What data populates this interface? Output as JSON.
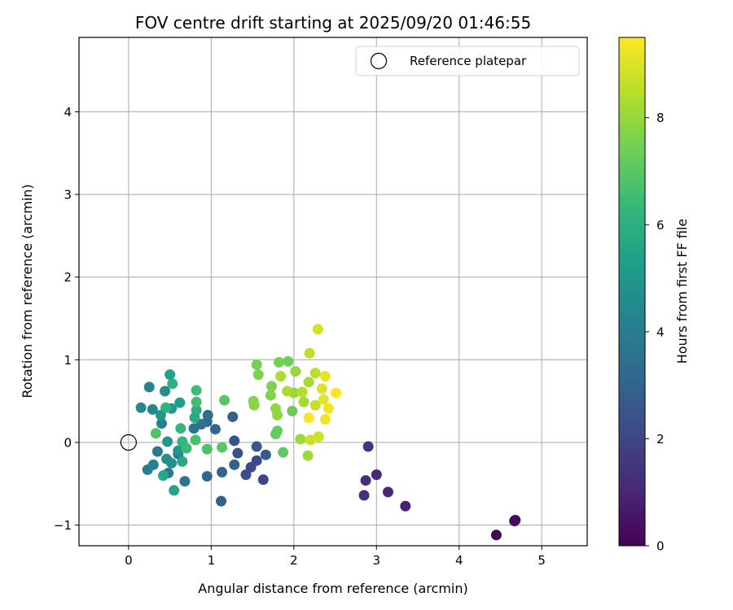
{
  "chart_data": {
    "type": "scatter",
    "title": "FOV centre drift starting at 2025/09/20 01:46:55",
    "xlabel": "Angular distance from reference (arcmin)",
    "ylabel": "Rotation from reference (arcmin)",
    "xlim": [
      -0.6,
      5.55
    ],
    "ylim": [
      -1.25,
      4.9
    ],
    "xticks": [
      0,
      1,
      2,
      3,
      4,
      5
    ],
    "yticks": [
      -1,
      0,
      1,
      2,
      3,
      4
    ],
    "xtick_labels": [
      "0",
      "1",
      "2",
      "3",
      "4",
      "5"
    ],
    "ytick_labels": [
      "−1",
      "0",
      "1",
      "2",
      "3",
      "4"
    ],
    "grid": true,
    "legend": {
      "position": "top-right",
      "label": "Reference platepar"
    },
    "reference_point": {
      "x": 0,
      "y": 0
    },
    "colorbar": {
      "label": "Hours from first FF file",
      "range": [
        0,
        9.5
      ],
      "ticks": [
        0,
        2,
        4,
        6,
        8
      ],
      "tick_labels": [
        "0",
        "2",
        "4",
        "6",
        "8"
      ],
      "colormap": "viridis",
      "stops": [
        "#440154",
        "#482878",
        "#3e4989",
        "#31688e",
        "#26828e",
        "#1f9e89",
        "#35b779",
        "#6ece58",
        "#b5de2b",
        "#fde725"
      ]
    },
    "series": [
      {
        "name": "FOV centre",
        "points": [
          {
            "x": 4.45,
            "y": -1.12,
            "t": 0.05
          },
          {
            "x": 4.68,
            "y": -0.94,
            "t": 0.15
          },
          {
            "x": 4.67,
            "y": -0.95,
            "t": 0.25
          },
          {
            "x": 3.35,
            "y": -0.77,
            "t": 0.9
          },
          {
            "x": 3.14,
            "y": -0.6,
            "t": 1.0
          },
          {
            "x": 3.0,
            "y": -0.39,
            "t": 1.1
          },
          {
            "x": 2.87,
            "y": -0.46,
            "t": 1.2
          },
          {
            "x": 2.85,
            "y": -0.64,
            "t": 1.3
          },
          {
            "x": 2.9,
            "y": -0.05,
            "t": 1.4
          },
          {
            "x": 1.63,
            "y": -0.45,
            "t": 2.0
          },
          {
            "x": 1.55,
            "y": -0.22,
            "t": 2.1
          },
          {
            "x": 1.48,
            "y": -0.3,
            "t": 2.2
          },
          {
            "x": 1.42,
            "y": -0.39,
            "t": 2.3
          },
          {
            "x": 1.32,
            "y": -0.13,
            "t": 2.4
          },
          {
            "x": 1.28,
            "y": 0.02,
            "t": 2.5
          },
          {
            "x": 1.55,
            "y": -0.05,
            "t": 2.6
          },
          {
            "x": 1.66,
            "y": -0.15,
            "t": 2.7
          },
          {
            "x": 1.26,
            "y": 0.31,
            "t": 2.8
          },
          {
            "x": 1.12,
            "y": -0.71,
            "t": 2.9
          },
          {
            "x": 1.13,
            "y": -0.36,
            "t": 3.0
          },
          {
            "x": 1.28,
            "y": -0.27,
            "t": 3.0
          },
          {
            "x": 1.05,
            "y": 0.16,
            "t": 3.1
          },
          {
            "x": 0.95,
            "y": -0.41,
            "t": 3.2
          },
          {
            "x": 0.95,
            "y": 0.25,
            "t": 3.3
          },
          {
            "x": 0.96,
            "y": 0.33,
            "t": 3.4
          },
          {
            "x": 0.88,
            "y": 0.22,
            "t": 3.5
          },
          {
            "x": 0.79,
            "y": 0.17,
            "t": 3.6
          },
          {
            "x": 0.68,
            "y": -0.47,
            "t": 3.6
          },
          {
            "x": 0.6,
            "y": -0.14,
            "t": 3.7
          },
          {
            "x": 0.48,
            "y": -0.37,
            "t": 3.8
          },
          {
            "x": 0.35,
            "y": -0.11,
            "t": 3.9
          },
          {
            "x": 0.3,
            "y": -0.27,
            "t": 4.0
          },
          {
            "x": 0.23,
            "y": -0.33,
            "t": 4.1
          },
          {
            "x": 0.4,
            "y": 0.23,
            "t": 4.2
          },
          {
            "x": 0.25,
            "y": 0.67,
            "t": 4.3
          },
          {
            "x": 0.29,
            "y": 0.4,
            "t": 4.4
          },
          {
            "x": 0.15,
            "y": 0.42,
            "t": 4.5
          },
          {
            "x": 0.44,
            "y": 0.62,
            "t": 4.6
          },
          {
            "x": 0.46,
            "y": -0.2,
            "t": 4.7
          },
          {
            "x": 0.52,
            "y": -0.25,
            "t": 4.8
          },
          {
            "x": 0.6,
            "y": -0.1,
            "t": 4.9
          },
          {
            "x": 0.47,
            "y": 0.01,
            "t": 5.0
          },
          {
            "x": 0.39,
            "y": 0.33,
            "t": 5.1
          },
          {
            "x": 0.52,
            "y": 0.41,
            "t": 5.2
          },
          {
            "x": 0.62,
            "y": 0.48,
            "t": 5.3
          },
          {
            "x": 0.5,
            "y": 0.82,
            "t": 5.4
          },
          {
            "x": 0.55,
            "y": -0.58,
            "t": 5.5
          },
          {
            "x": 0.42,
            "y": -0.4,
            "t": 5.6
          },
          {
            "x": 0.65,
            "y": -0.23,
            "t": 5.7
          },
          {
            "x": 0.8,
            "y": 0.3,
            "t": 5.8
          },
          {
            "x": 0.82,
            "y": 0.39,
            "t": 5.9
          },
          {
            "x": 0.53,
            "y": 0.71,
            "t": 6.0
          },
          {
            "x": 0.45,
            "y": 0.42,
            "t": 6.1
          },
          {
            "x": 0.63,
            "y": 0.17,
            "t": 6.2
          },
          {
            "x": 0.65,
            "y": 0.01,
            "t": 6.3
          },
          {
            "x": 0.7,
            "y": -0.07,
            "t": 6.4
          },
          {
            "x": 0.82,
            "y": 0.63,
            "t": 6.5
          },
          {
            "x": 0.82,
            "y": 0.49,
            "t": 6.6
          },
          {
            "x": 0.81,
            "y": 0.03,
            "t": 6.7
          },
          {
            "x": 0.95,
            "y": -0.08,
            "t": 6.8
          },
          {
            "x": 0.33,
            "y": 0.11,
            "t": 6.9
          },
          {
            "x": 1.13,
            "y": -0.06,
            "t": 7.0
          },
          {
            "x": 1.16,
            "y": 0.51,
            "t": 7.0
          },
          {
            "x": 1.87,
            "y": -0.12,
            "t": 7.1
          },
          {
            "x": 1.78,
            "y": 0.1,
            "t": 7.2
          },
          {
            "x": 1.8,
            "y": 0.14,
            "t": 7.2
          },
          {
            "x": 1.98,
            "y": 0.38,
            "t": 7.3
          },
          {
            "x": 1.93,
            "y": 0.98,
            "t": 7.4
          },
          {
            "x": 1.82,
            "y": 0.97,
            "t": 7.5
          },
          {
            "x": 1.55,
            "y": 0.94,
            "t": 7.5
          },
          {
            "x": 1.57,
            "y": 0.82,
            "t": 7.6
          },
          {
            "x": 1.73,
            "y": 0.68,
            "t": 7.6
          },
          {
            "x": 1.72,
            "y": 0.57,
            "t": 7.7
          },
          {
            "x": 1.52,
            "y": 0.45,
            "t": 7.8
          },
          {
            "x": 1.51,
            "y": 0.5,
            "t": 7.8
          },
          {
            "x": 1.78,
            "y": 0.41,
            "t": 7.9
          },
          {
            "x": 1.8,
            "y": 0.33,
            "t": 7.9
          },
          {
            "x": 2.0,
            "y": 0.6,
            "t": 8.0
          },
          {
            "x": 2.02,
            "y": 0.86,
            "t": 8.0
          },
          {
            "x": 2.08,
            "y": 0.04,
            "t": 8.1
          },
          {
            "x": 2.17,
            "y": -0.16,
            "t": 8.1
          },
          {
            "x": 2.12,
            "y": 0.49,
            "t": 8.2
          },
          {
            "x": 2.18,
            "y": 0.73,
            "t": 8.2
          },
          {
            "x": 1.84,
            "y": 0.8,
            "t": 8.3
          },
          {
            "x": 1.92,
            "y": 0.62,
            "t": 8.3
          },
          {
            "x": 2.1,
            "y": 0.61,
            "t": 8.4
          },
          {
            "x": 2.26,
            "y": 0.84,
            "t": 8.5
          },
          {
            "x": 2.19,
            "y": 1.08,
            "t": 8.6
          },
          {
            "x": 2.26,
            "y": 0.45,
            "t": 8.7
          },
          {
            "x": 2.3,
            "y": 0.07,
            "t": 8.8
          },
          {
            "x": 2.2,
            "y": 0.03,
            "t": 8.8
          },
          {
            "x": 2.29,
            "y": 1.37,
            "t": 8.9
          },
          {
            "x": 2.34,
            "y": 0.65,
            "t": 9.0
          },
          {
            "x": 2.36,
            "y": 0.52,
            "t": 9.1
          },
          {
            "x": 2.38,
            "y": 0.8,
            "t": 9.2
          },
          {
            "x": 2.38,
            "y": 0.28,
            "t": 9.3
          },
          {
            "x": 2.42,
            "y": 0.41,
            "t": 9.3
          },
          {
            "x": 2.51,
            "y": 0.6,
            "t": 9.4
          },
          {
            "x": 2.18,
            "y": 0.3,
            "t": 9.4
          }
        ]
      }
    ]
  }
}
